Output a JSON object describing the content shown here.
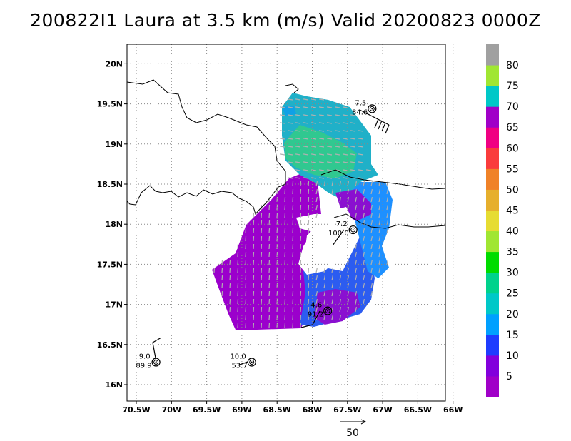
{
  "title": "200822I1 Laura at 3.5 km (m/s) Valid 20200823 0000Z",
  "chart_data": {
    "type": "heatmap",
    "title": "200822I1 Laura at 3.5 km (m/s) Valid 20200823 0000Z",
    "xlabel": "",
    "ylabel": "",
    "xlim": [
      -70.5,
      -66.0
    ],
    "ylim": [
      16.0,
      20.0
    ],
    "x_ticks": [
      "70.5W",
      "70W",
      "69.5W",
      "69W",
      "68.5W",
      "68W",
      "67.5W",
      "67W",
      "66.5W",
      "66W"
    ],
    "y_ticks": [
      "16N",
      "16.5N",
      "17N",
      "17.5N",
      "18N",
      "18.5N",
      "19N",
      "19.5N",
      "20N"
    ],
    "grid": true,
    "colorbar": {
      "labels": [
        "5",
        "10",
        "15",
        "20",
        "25",
        "30",
        "35",
        "40",
        "45",
        "50",
        "55",
        "60",
        "65",
        "70",
        "75",
        "80"
      ],
      "colors": [
        "#a000c8",
        "#8200dc",
        "#1e3cff",
        "#00a0ff",
        "#00c8c8",
        "#00d28c",
        "#00dc00",
        "#a0e632",
        "#e6dc32",
        "#e6af2d",
        "#f08228",
        "#fa3c3c",
        "#f00082",
        "#a000c8",
        "#00c8c8",
        "#a0e632",
        "#a0a0a0"
      ]
    },
    "stations": [
      {
        "label_top": "7.5",
        "label_bottom": "84.6",
        "lon": -67.15,
        "lat": 19.44
      },
      {
        "label_top": "7.2",
        "label_bottom": "100.0",
        "lon": -67.42,
        "lat": 17.93
      },
      {
        "label_top": "4.6",
        "label_bottom": "91.2",
        "lon": -67.78,
        "lat": 16.92
      },
      {
        "label_top": "9.0",
        "label_bottom": "89.9",
        "lon": -70.22,
        "lat": 16.28
      },
      {
        "label_top": "10.0",
        "label_bottom": "53.7",
        "lon": -68.86,
        "lat": 16.28
      }
    ],
    "reference_vector": {
      "label": "50"
    }
  }
}
